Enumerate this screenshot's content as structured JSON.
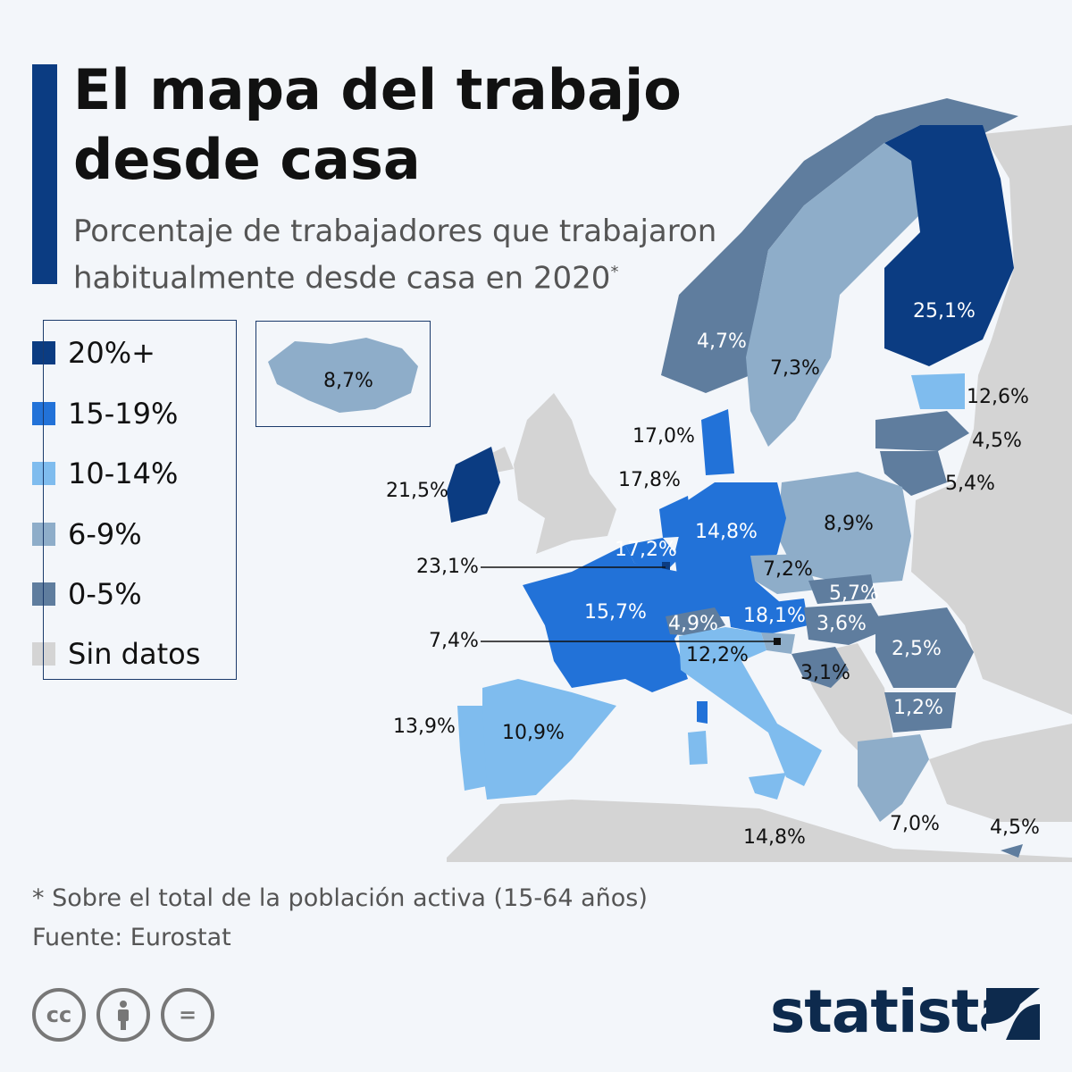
{
  "title": "El mapa del trabajo desde casa",
  "subtitle": "Porcentaje de trabajadores que trabajaron habitualmente desde casa en 2020",
  "subtitle_mark": "*",
  "colors": {
    "c20plus": "#0b3c82",
    "c15_19": "#2272d8",
    "c10_14": "#7fbcee",
    "c6_9": "#8eadc9",
    "c0_5": "#5f7d9e",
    "no_data": "#d4d4d4",
    "accent": "#0b3c82"
  },
  "legend": [
    {
      "label": "20%+",
      "color": "#0b3c82"
    },
    {
      "label": "15-19%",
      "color": "#2272d8"
    },
    {
      "label": "10-14%",
      "color": "#7fbcee"
    },
    {
      "label": "6-9%",
      "color": "#8eadc9"
    },
    {
      "label": "0-5%",
      "color": "#5f7d9e"
    },
    {
      "label": "Sin datos",
      "color": "#d4d4d4"
    }
  ],
  "values": {
    "finland": "25,1%",
    "norway": "4,7%",
    "sweden": "7,3%",
    "iceland": "8,7%",
    "estonia": "12,6%",
    "latvia": "4,5%",
    "lithuania": "5,4%",
    "denmark": "17,0%",
    "netherlands": "17,8%",
    "ireland": "21,5%",
    "belgium": "17,2%",
    "germany": "14,8%",
    "poland": "8,9%",
    "luxembourg": "23,1%",
    "czechia": "7,2%",
    "slovakia": "5,7%",
    "france": "15,7%",
    "switzerland": "4,9%",
    "austria": "18,1%",
    "hungary": "3,6%",
    "slovenia": "7,4%",
    "romania": "2,5%",
    "italy": "12,2%",
    "croatia": "3,1%",
    "bulgaria": "1,2%",
    "portugal": "13,9%",
    "spain": "10,9%",
    "malta": "14,8%",
    "greece": "7,0%",
    "cyprus": "4,5%"
  },
  "footnote": "* Sobre el total de la población activa (15-64 años)",
  "source": "Fuente: Eurostat",
  "license_icons": [
    "cc-icon",
    "attribution-icon",
    "no-derivatives-icon"
  ],
  "license_text": {
    "cc": "cc",
    "eq": "="
  },
  "brand": "statista"
}
